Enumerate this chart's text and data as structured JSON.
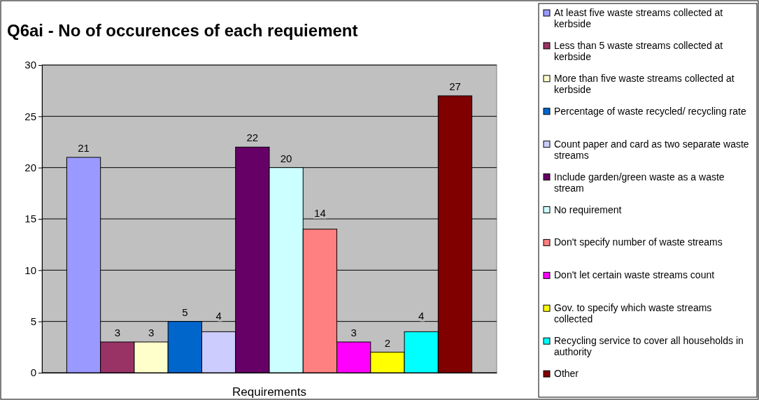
{
  "chart_data": {
    "type": "bar",
    "title": "Q6ai - No of occurences of each requiement",
    "xlabel": "Requirements",
    "categories": [
      null
    ],
    "series": [
      {
        "name": "At least five waste streams collected at kerbside",
        "color": "#9999ff",
        "values": [
          21
        ]
      },
      {
        "name": "Less than 5 waste streams collected at kerbside",
        "color": "#993366",
        "values": [
          3
        ]
      },
      {
        "name": "More than five waste streams collected at kerbside",
        "color": "#ffffcc",
        "values": [
          3
        ]
      },
      {
        "name": "Percentage of waste recycled/ recycling rate",
        "color": "#0066cc",
        "values": [
          5
        ]
      },
      {
        "name": "Count paper and card as two separate waste streams",
        "color": "#ccccff",
        "values": [
          4
        ]
      },
      {
        "name": "Include garden/green waste as a waste stream",
        "color": "#660066",
        "values": [
          22
        ]
      },
      {
        "name": "No requirement",
        "color": "#ccffff",
        "values": [
          20
        ]
      },
      {
        "name": "Don't specify number of waste streams",
        "color": "#ff8080",
        "values": [
          14
        ]
      },
      {
        "name": "Don't let certain waste streams count",
        "color": "#ff00ff",
        "values": [
          3
        ]
      },
      {
        "name": "Gov. to specify which waste streams collected",
        "color": "#ffff00",
        "values": [
          2
        ]
      },
      {
        "name": "Recycling service to cover all households in authority",
        "color": "#00ffff",
        "values": [
          4
        ]
      },
      {
        "name": "Other",
        "color": "#800000",
        "values": [
          27
        ]
      }
    ],
    "ylim": [
      0,
      30
    ],
    "yticks": [
      0,
      5,
      10,
      15,
      20,
      25,
      30
    ],
    "grid": "y",
    "legend": "right",
    "data_labels": true
  }
}
